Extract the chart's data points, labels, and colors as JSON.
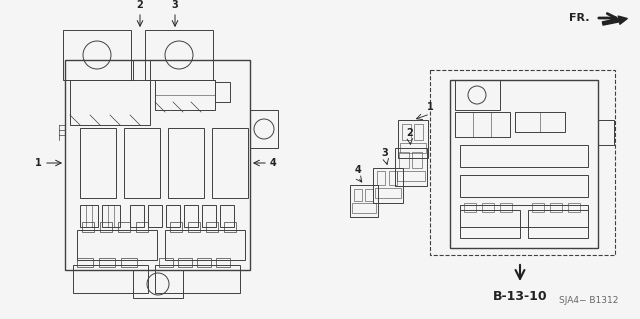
{
  "bg_color": "#f5f5f5",
  "line_color": "#404040",
  "dark_color": "#222222",
  "fig_width": 6.4,
  "fig_height": 3.19,
  "dpi": 100,
  "b1312_label": "B-13-10",
  "part_label": "SJA4− B1312",
  "fr_label": "FR."
}
